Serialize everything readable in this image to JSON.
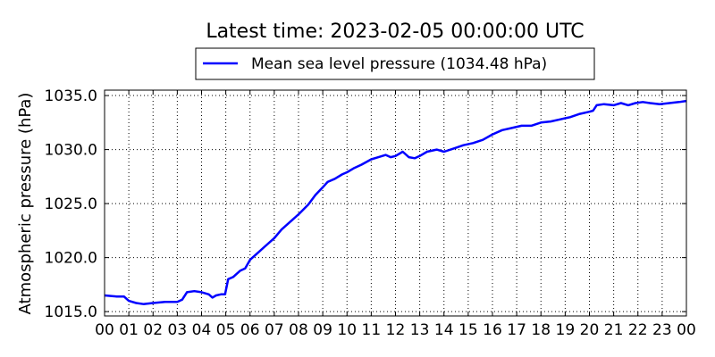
{
  "chart_data": {
    "type": "line",
    "title": "Latest time: 2023-02-05 00:00:00 UTC",
    "xlabel": "",
    "ylabel": "Atmospheric pressure (hPa)",
    "x_tick_labels": [
      "00",
      "01",
      "02",
      "03",
      "04",
      "05",
      "06",
      "07",
      "08",
      "09",
      "10",
      "11",
      "12",
      "13",
      "14",
      "15",
      "16",
      "17",
      "18",
      "19",
      "20",
      "21",
      "22",
      "23",
      "00"
    ],
    "y_tick_labels": [
      "1015.0",
      "1020.0",
      "1025.0",
      "1030.0",
      "1035.0"
    ],
    "y_ticks": [
      1015,
      1020,
      1025,
      1030,
      1035
    ],
    "xlim": [
      0,
      24
    ],
    "ylim": [
      1014.6,
      1035.5
    ],
    "grid": true,
    "legend_position": "top-center",
    "series": [
      {
        "name": "Mean sea level pressure (1034.48 hPa)",
        "color": "#0000ff",
        "points": [
          [
            0.0,
            1016.5
          ],
          [
            0.5,
            1016.4
          ],
          [
            0.8,
            1016.4
          ],
          [
            1.0,
            1016.0
          ],
          [
            1.3,
            1015.8
          ],
          [
            1.6,
            1015.7
          ],
          [
            2.0,
            1015.8
          ],
          [
            2.5,
            1015.9
          ],
          [
            3.0,
            1015.9
          ],
          [
            3.2,
            1016.1
          ],
          [
            3.4,
            1016.8
          ],
          [
            3.7,
            1016.9
          ],
          [
            4.0,
            1016.8
          ],
          [
            4.3,
            1016.6
          ],
          [
            4.45,
            1016.3
          ],
          [
            4.6,
            1016.5
          ],
          [
            4.8,
            1016.6
          ],
          [
            4.97,
            1016.6
          ],
          [
            5.1,
            1018.0
          ],
          [
            5.3,
            1018.2
          ],
          [
            5.6,
            1018.8
          ],
          [
            5.8,
            1019.0
          ],
          [
            6.0,
            1019.8
          ],
          [
            6.3,
            1020.4
          ],
          [
            6.6,
            1021.0
          ],
          [
            7.0,
            1021.8
          ],
          [
            7.3,
            1022.6
          ],
          [
            7.6,
            1023.2
          ],
          [
            8.0,
            1024.0
          ],
          [
            8.4,
            1024.9
          ],
          [
            8.7,
            1025.8
          ],
          [
            9.0,
            1026.5
          ],
          [
            9.2,
            1027.0
          ],
          [
            9.5,
            1027.3
          ],
          [
            9.8,
            1027.7
          ],
          [
            10.0,
            1027.9
          ],
          [
            10.3,
            1028.3
          ],
          [
            10.6,
            1028.6
          ],
          [
            11.0,
            1029.1
          ],
          [
            11.3,
            1029.3
          ],
          [
            11.6,
            1029.5
          ],
          [
            11.8,
            1029.3
          ],
          [
            12.0,
            1029.4
          ],
          [
            12.3,
            1029.8
          ],
          [
            12.55,
            1029.3
          ],
          [
            12.8,
            1029.2
          ],
          [
            13.0,
            1029.4
          ],
          [
            13.3,
            1029.8
          ],
          [
            13.7,
            1030.0
          ],
          [
            14.0,
            1029.8
          ],
          [
            14.4,
            1030.1
          ],
          [
            14.8,
            1030.4
          ],
          [
            15.2,
            1030.6
          ],
          [
            15.6,
            1030.9
          ],
          [
            16.0,
            1031.4
          ],
          [
            16.4,
            1031.8
          ],
          [
            16.8,
            1032.0
          ],
          [
            17.2,
            1032.2
          ],
          [
            17.6,
            1032.2
          ],
          [
            18.0,
            1032.5
          ],
          [
            18.4,
            1032.6
          ],
          [
            18.8,
            1032.8
          ],
          [
            19.2,
            1033.0
          ],
          [
            19.6,
            1033.3
          ],
          [
            20.0,
            1033.5
          ],
          [
            20.15,
            1033.6
          ],
          [
            20.3,
            1034.1
          ],
          [
            20.6,
            1034.2
          ],
          [
            21.0,
            1034.1
          ],
          [
            21.3,
            1034.3
          ],
          [
            21.6,
            1034.1
          ],
          [
            21.9,
            1034.3
          ],
          [
            22.2,
            1034.4
          ],
          [
            22.5,
            1034.3
          ],
          [
            22.9,
            1034.2
          ],
          [
            23.3,
            1034.3
          ],
          [
            23.7,
            1034.4
          ],
          [
            24.0,
            1034.5
          ]
        ]
      }
    ]
  }
}
